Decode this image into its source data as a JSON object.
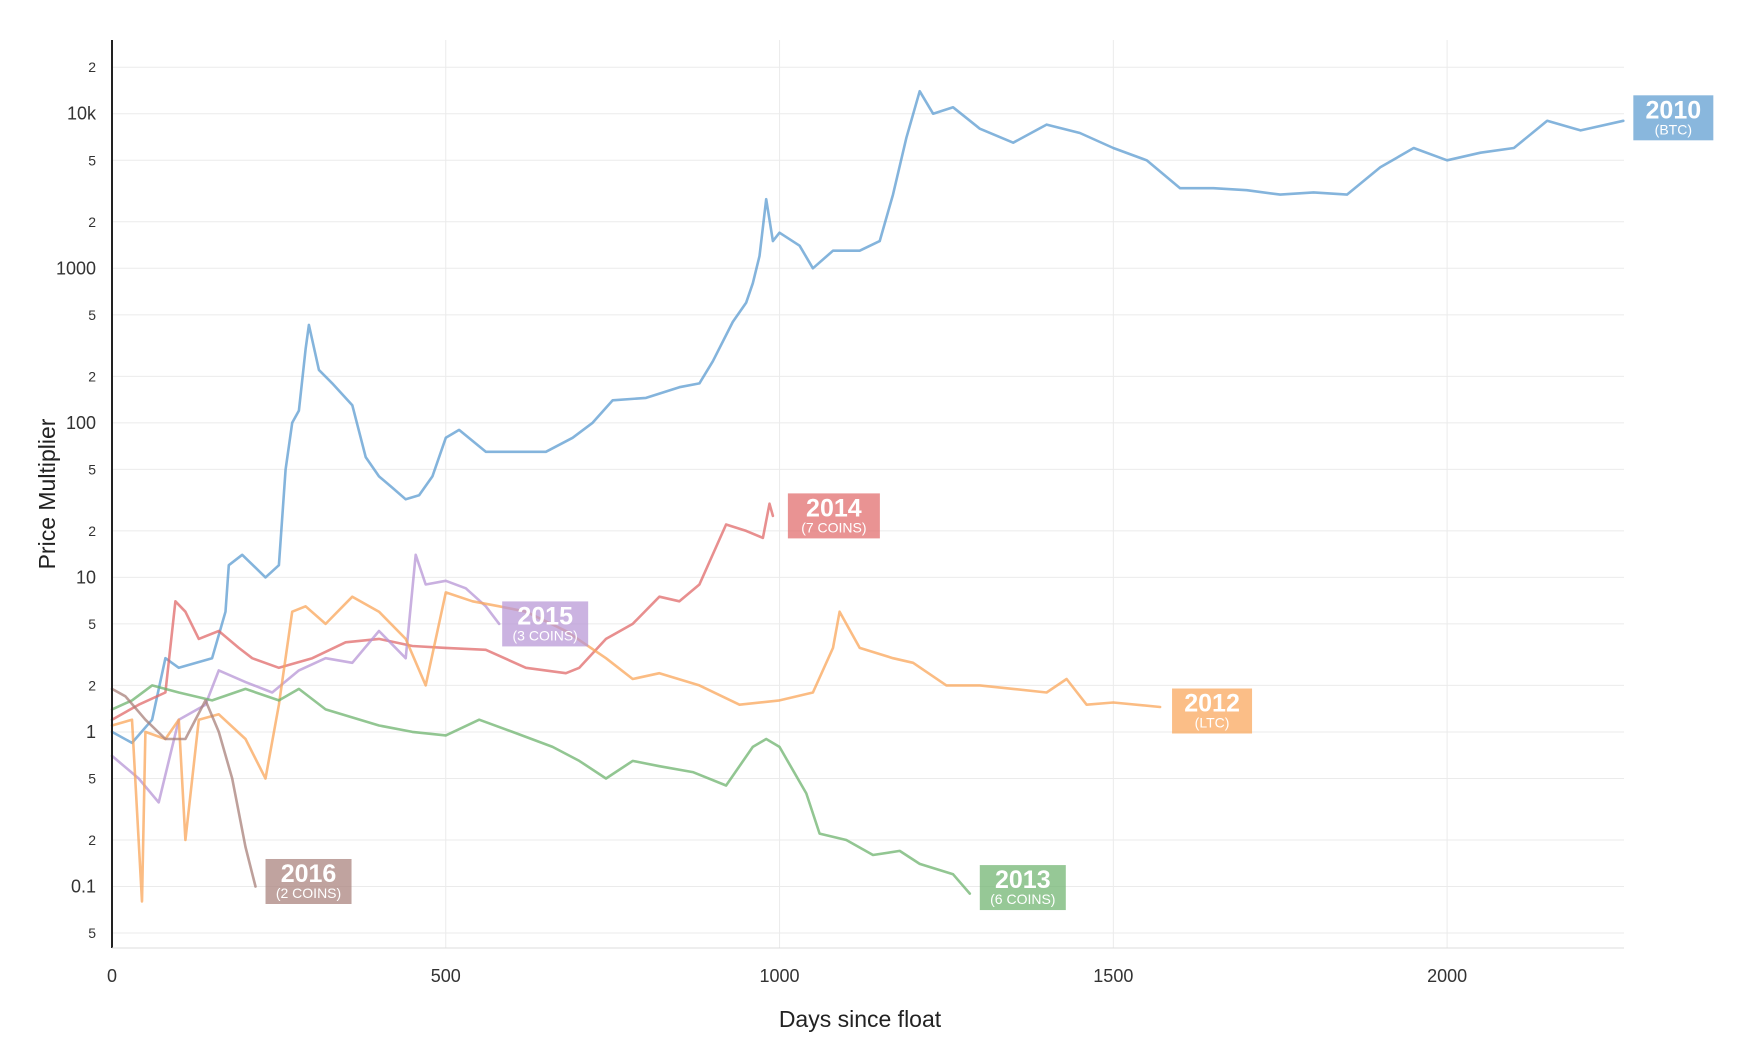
{
  "chart_data": {
    "type": "line",
    "xlabel": "Days since float",
    "ylabel": "Price Multiplier",
    "y_scale": "log",
    "xlim": [
      0,
      2265
    ],
    "ylim": [
      0.04,
      30000
    ],
    "x_ticks": [
      "0",
      "500",
      "1000",
      "1500",
      "2000"
    ],
    "y_major_ticks": [
      "0.1",
      "1",
      "10",
      "100",
      "1000",
      "10k"
    ],
    "y_minor_tick_labels": [
      "5",
      "2"
    ],
    "grid": true,
    "legend": "inline-end-labels",
    "series": [
      {
        "label": "2010",
        "sublabel": "(BTC)",
        "color": "#5b9bd0",
        "points": [
          [
            0,
            1.0
          ],
          [
            30,
            0.85
          ],
          [
            60,
            1.2
          ],
          [
            80,
            3.0
          ],
          [
            100,
            2.6
          ],
          [
            150,
            3.0
          ],
          [
            170,
            6.0
          ],
          [
            175,
            12
          ],
          [
            195,
            14
          ],
          [
            230,
            10
          ],
          [
            250,
            12
          ],
          [
            260,
            50
          ],
          [
            270,
            100
          ],
          [
            280,
            120
          ],
          [
            290,
            300
          ],
          [
            295,
            430
          ],
          [
            310,
            220
          ],
          [
            330,
            180
          ],
          [
            360,
            130
          ],
          [
            380,
            60
          ],
          [
            400,
            45
          ],
          [
            420,
            38
          ],
          [
            440,
            32
          ],
          [
            460,
            34
          ],
          [
            480,
            45
          ],
          [
            500,
            80
          ],
          [
            520,
            90
          ],
          [
            560,
            65
          ],
          [
            600,
            65
          ],
          [
            650,
            65
          ],
          [
            690,
            80
          ],
          [
            720,
            100
          ],
          [
            750,
            140
          ],
          [
            800,
            145
          ],
          [
            850,
            170
          ],
          [
            880,
            180
          ],
          [
            900,
            250
          ],
          [
            930,
            450
          ],
          [
            950,
            600
          ],
          [
            960,
            800
          ],
          [
            970,
            1200
          ],
          [
            980,
            2800
          ],
          [
            990,
            1500
          ],
          [
            1000,
            1700
          ],
          [
            1030,
            1400
          ],
          [
            1050,
            1000
          ],
          [
            1080,
            1300
          ],
          [
            1120,
            1300
          ],
          [
            1150,
            1500
          ],
          [
            1170,
            3000
          ],
          [
            1190,
            7000
          ],
          [
            1210,
            14000
          ],
          [
            1230,
            10000
          ],
          [
            1260,
            11000
          ],
          [
            1300,
            8000
          ],
          [
            1350,
            6500
          ],
          [
            1400,
            8500
          ],
          [
            1450,
            7500
          ],
          [
            1500,
            6000
          ],
          [
            1550,
            5000
          ],
          [
            1600,
            3300
          ],
          [
            1650,
            3300
          ],
          [
            1700,
            3200
          ],
          [
            1750,
            3000
          ],
          [
            1800,
            3100
          ],
          [
            1850,
            3000
          ],
          [
            1900,
            4500
          ],
          [
            1950,
            6000
          ],
          [
            2000,
            5000
          ],
          [
            2050,
            5600
          ],
          [
            2100,
            6000
          ],
          [
            2150,
            9000
          ],
          [
            2200,
            7800
          ],
          [
            2264,
            9000
          ]
        ]
      },
      {
        "label": "2014",
        "sublabel": "(7 COINS)",
        "color": "#e06a6a",
        "points": [
          [
            0,
            1.2
          ],
          [
            40,
            1.5
          ],
          [
            80,
            1.8
          ],
          [
            95,
            7.0
          ],
          [
            110,
            6.0
          ],
          [
            130,
            4.0
          ],
          [
            160,
            4.5
          ],
          [
            190,
            3.5
          ],
          [
            210,
            3.0
          ],
          [
            250,
            2.6
          ],
          [
            300,
            3.0
          ],
          [
            350,
            3.8
          ],
          [
            400,
            4.0
          ],
          [
            450,
            3.6
          ],
          [
            500,
            3.5
          ],
          [
            560,
            3.4
          ],
          [
            620,
            2.6
          ],
          [
            680,
            2.4
          ],
          [
            700,
            2.6
          ],
          [
            740,
            4.0
          ],
          [
            780,
            5.0
          ],
          [
            820,
            7.5
          ],
          [
            850,
            7.0
          ],
          [
            880,
            9.0
          ],
          [
            920,
            22
          ],
          [
            950,
            20
          ],
          [
            975,
            18
          ],
          [
            985,
            30
          ],
          [
            990,
            25
          ]
        ]
      },
      {
        "label": "2015",
        "sublabel": "(3 COINS)",
        "color": "#b796d6",
        "points": [
          [
            0,
            0.7
          ],
          [
            40,
            0.5
          ],
          [
            70,
            0.35
          ],
          [
            100,
            1.2
          ],
          [
            140,
            1.5
          ],
          [
            160,
            2.5
          ],
          [
            200,
            2.1
          ],
          [
            240,
            1.8
          ],
          [
            280,
            2.5
          ],
          [
            320,
            3.0
          ],
          [
            360,
            2.8
          ],
          [
            400,
            4.5
          ],
          [
            440,
            3.0
          ],
          [
            455,
            14
          ],
          [
            470,
            9
          ],
          [
            500,
            9.5
          ],
          [
            530,
            8.5
          ],
          [
            560,
            6.5
          ],
          [
            580,
            5.0
          ]
        ]
      },
      {
        "label": "2012",
        "sublabel": "(LTC)",
        "color": "#f9a559",
        "points": [
          [
            0,
            1.1
          ],
          [
            30,
            1.2
          ],
          [
            45,
            0.08
          ],
          [
            50,
            1.0
          ],
          [
            80,
            0.9
          ],
          [
            100,
            1.2
          ],
          [
            110,
            0.2
          ],
          [
            130,
            1.2
          ],
          [
            160,
            1.3
          ],
          [
            200,
            0.9
          ],
          [
            230,
            0.5
          ],
          [
            250,
            1.5
          ],
          [
            270,
            6.0
          ],
          [
            290,
            6.5
          ],
          [
            320,
            5.0
          ],
          [
            360,
            7.5
          ],
          [
            400,
            6.0
          ],
          [
            440,
            4.0
          ],
          [
            470,
            2.0
          ],
          [
            500,
            8.0
          ],
          [
            540,
            7.0
          ],
          [
            580,
            6.5
          ],
          [
            620,
            6.0
          ],
          [
            680,
            4.5
          ],
          [
            740,
            3.0
          ],
          [
            780,
            2.2
          ],
          [
            820,
            2.4
          ],
          [
            880,
            2.0
          ],
          [
            940,
            1.5
          ],
          [
            1000,
            1.6
          ],
          [
            1050,
            1.8
          ],
          [
            1080,
            3.5
          ],
          [
            1090,
            6.0
          ],
          [
            1120,
            3.5
          ],
          [
            1170,
            3.0
          ],
          [
            1200,
            2.8
          ],
          [
            1250,
            2.0
          ],
          [
            1300,
            2.0
          ],
          [
            1350,
            1.9
          ],
          [
            1400,
            1.8
          ],
          [
            1430,
            2.2
          ],
          [
            1460,
            1.5
          ],
          [
            1500,
            1.55
          ],
          [
            1570,
            1.45
          ]
        ]
      },
      {
        "label": "2013",
        "sublabel": "(6 COINS)",
        "color": "#6db36d",
        "points": [
          [
            0,
            1.4
          ],
          [
            30,
            1.6
          ],
          [
            60,
            2.0
          ],
          [
            100,
            1.8
          ],
          [
            150,
            1.6
          ],
          [
            200,
            1.9
          ],
          [
            250,
            1.6
          ],
          [
            280,
            1.9
          ],
          [
            320,
            1.4
          ],
          [
            400,
            1.1
          ],
          [
            450,
            1.0
          ],
          [
            500,
            0.95
          ],
          [
            550,
            1.2
          ],
          [
            600,
            1.0
          ],
          [
            660,
            0.8
          ],
          [
            700,
            0.65
          ],
          [
            740,
            0.5
          ],
          [
            780,
            0.65
          ],
          [
            820,
            0.6
          ],
          [
            870,
            0.55
          ],
          [
            920,
            0.45
          ],
          [
            960,
            0.8
          ],
          [
            980,
            0.9
          ],
          [
            1000,
            0.8
          ],
          [
            1040,
            0.4
          ],
          [
            1060,
            0.22
          ],
          [
            1100,
            0.2
          ],
          [
            1140,
            0.16
          ],
          [
            1180,
            0.17
          ],
          [
            1210,
            0.14
          ],
          [
            1260,
            0.12
          ],
          [
            1285,
            0.09
          ]
        ]
      },
      {
        "label": "2016",
        "sublabel": "(2 COINS)",
        "color": "#a8807a",
        "points": [
          [
            0,
            1.9
          ],
          [
            20,
            1.7
          ],
          [
            50,
            1.2
          ],
          [
            80,
            0.9
          ],
          [
            110,
            0.9
          ],
          [
            140,
            1.6
          ],
          [
            160,
            1.0
          ],
          [
            180,
            0.5
          ],
          [
            200,
            0.18
          ],
          [
            215,
            0.1
          ]
        ]
      }
    ]
  }
}
